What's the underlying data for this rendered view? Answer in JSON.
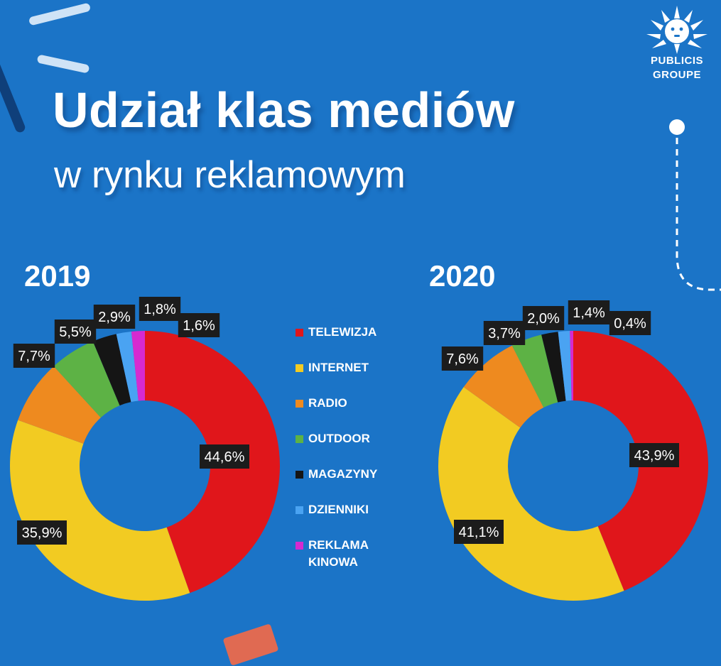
{
  "header": {
    "title": "Udział klas mediów",
    "subtitle": "w rynku reklamowym"
  },
  "logo": {
    "line1": "PUBLICIS",
    "line2": "GROUPE"
  },
  "colors": {
    "background": "#1b74c7",
    "label_box": "#1c1c1c",
    "label_text": "#ffffff"
  },
  "legend": [
    {
      "label": "TELEWIZJA",
      "color": "#e0161b"
    },
    {
      "label": "INTERNET",
      "color": "#f2cb22"
    },
    {
      "label": "RADIO",
      "color": "#ee8a1f"
    },
    {
      "label": "OUTDOOR",
      "color": "#5db245"
    },
    {
      "label": "MAGAZYNY",
      "color": "#151515"
    },
    {
      "label": "DZIENNIKI",
      "color": "#4aa3f2"
    },
    {
      "label": "REKLAMA\nKINOWA",
      "color": "#d62ad0"
    }
  ],
  "chart_data": [
    {
      "type": "pie",
      "variant": "donut",
      "title": "2019",
      "categories": [
        "TELEWIZJA",
        "INTERNET",
        "RADIO",
        "OUTDOOR",
        "MAGAZYNY",
        "DZIENNIKI",
        "REKLAMA KINOWA"
      ],
      "values": [
        44.6,
        35.9,
        7.7,
        5.5,
        2.9,
        1.8,
        1.6
      ],
      "labels": [
        "44,6%",
        "35,9%",
        "7,7%",
        "5,5%",
        "2,9%",
        "1,8%",
        "1,6%"
      ],
      "start": "12 o'clock",
      "direction": "clockwise"
    },
    {
      "type": "pie",
      "variant": "donut",
      "title": "2020",
      "categories": [
        "TELEWIZJA",
        "INTERNET",
        "RADIO",
        "OUTDOOR",
        "MAGAZYNY",
        "DZIENNIKI",
        "REKLAMA KINOWA"
      ],
      "values": [
        43.9,
        41.1,
        7.6,
        3.7,
        2.0,
        1.4,
        0.4
      ],
      "labels": [
        "43,9%",
        "41,1%",
        "7,6%",
        "3,7%",
        "2,0%",
        "1,4%",
        "0,4%"
      ],
      "start": "12 o'clock",
      "direction": "clockwise"
    }
  ]
}
